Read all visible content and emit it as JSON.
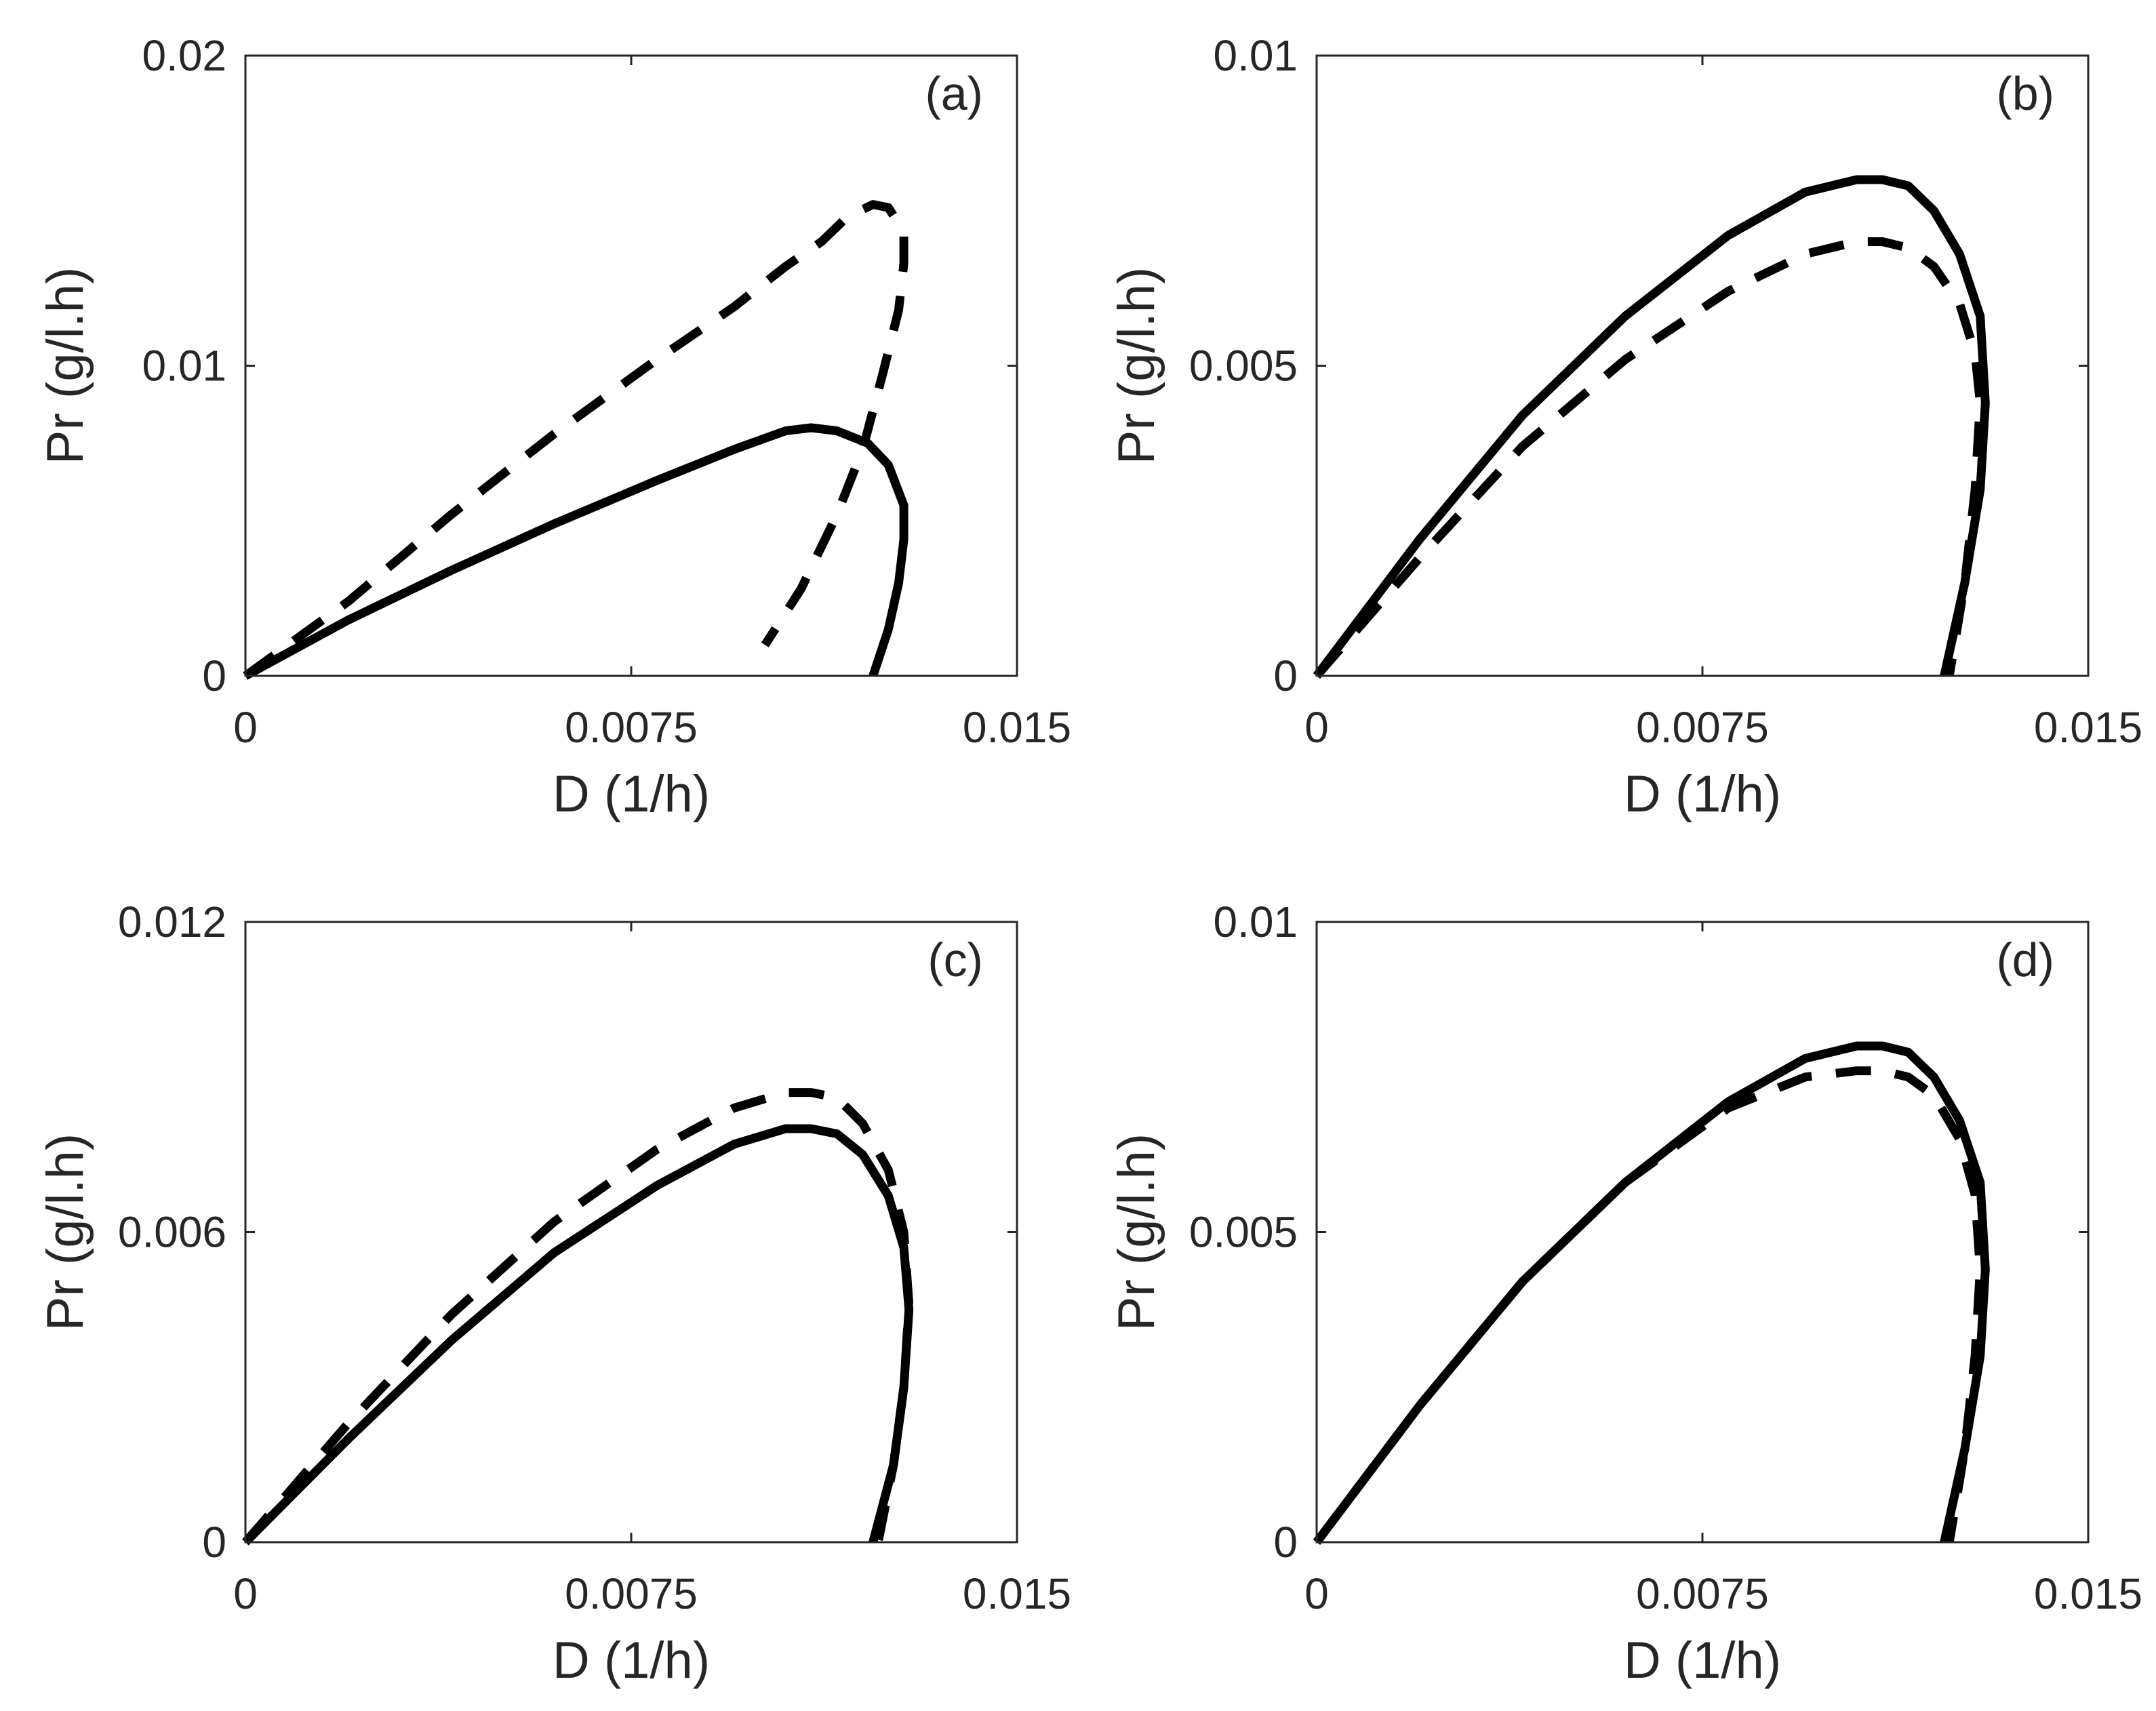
{
  "chart_data": [
    {
      "type": "line",
      "panel_label": "(a)",
      "xlabel": "D (1/h)",
      "ylabel": "Pr (g/l.h)",
      "xlim": [
        0,
        0.015
      ],
      "ylim": [
        0,
        0.02
      ],
      "xticks": [
        "0",
        "0.0075",
        "0.015"
      ],
      "yticks": [
        "0",
        "0.01",
        "0.02"
      ],
      "series": [
        {
          "name": "solid",
          "style": "solid",
          "x": [
            0,
            0.002,
            0.004,
            0.006,
            0.008,
            0.0095,
            0.0105,
            0.011,
            0.0115,
            0.0121,
            0.0125,
            0.0128,
            0.0128,
            0.0127,
            0.0125,
            0.0122
          ],
          "y": [
            0,
            0.0018,
            0.0034,
            0.0049,
            0.0063,
            0.0073,
            0.0079,
            0.008,
            0.0079,
            0.0075,
            0.0068,
            0.0055,
            0.0044,
            0.003,
            0.0015,
            0
          ]
        },
        {
          "name": "dashed",
          "style": "dashed",
          "x": [
            0,
            0.002,
            0.004,
            0.006,
            0.008,
            0.0095,
            0.0105,
            0.0112,
            0.0117,
            0.0122,
            0.0125,
            0.0128,
            0.0128,
            0.0127,
            0.0124,
            0.012,
            0.0115,
            0.0108,
            0.0101
          ],
          "y": [
            0,
            0.0024,
            0.0052,
            0.0078,
            0.0102,
            0.0119,
            0.0132,
            0.014,
            0.0148,
            0.0152,
            0.0151,
            0.0143,
            0.0133,
            0.0118,
            0.0098,
            0.0073,
            0.0052,
            0.0028,
            0.001
          ]
        }
      ]
    },
    {
      "type": "line",
      "panel_label": "(b)",
      "xlabel": "D (1/h)",
      "ylabel": "Pr (g/l.h)",
      "xlim": [
        0,
        0.015
      ],
      "ylim": [
        0,
        0.01
      ],
      "xticks": [
        "0",
        "0.0075",
        "0.015"
      ],
      "yticks": [
        "0",
        "0.005",
        "0.01"
      ],
      "series": [
        {
          "name": "solid",
          "style": "solid",
          "x": [
            0,
            0.002,
            0.004,
            0.006,
            0.008,
            0.0095,
            0.0105,
            0.011,
            0.0115,
            0.012,
            0.0125,
            0.0129,
            0.013,
            0.0129,
            0.0126,
            0.0122
          ],
          "y": [
            0,
            0.0022,
            0.0042,
            0.0058,
            0.0071,
            0.0078,
            0.008,
            0.008,
            0.0079,
            0.0075,
            0.0068,
            0.0058,
            0.0044,
            0.003,
            0.0015,
            0
          ]
        },
        {
          "name": "dashed",
          "style": "dashed",
          "x": [
            0,
            0.002,
            0.004,
            0.006,
            0.008,
            0.0095,
            0.0105,
            0.011,
            0.0115,
            0.012,
            0.0125,
            0.0128,
            0.0129,
            0.0128,
            0.0126,
            0.0123
          ],
          "y": [
            0,
            0.0019,
            0.0037,
            0.0051,
            0.0062,
            0.0068,
            0.007,
            0.007,
            0.0069,
            0.0066,
            0.006,
            0.0052,
            0.0044,
            0.003,
            0.0015,
            0
          ]
        }
      ]
    },
    {
      "type": "line",
      "panel_label": "(c)",
      "xlabel": "D (1/h)",
      "ylabel": "Pr (g/l.h)",
      "xlim": [
        0,
        0.015
      ],
      "ylim": [
        0,
        0.012
      ],
      "xticks": [
        "0",
        "0.0075",
        "0.015"
      ],
      "yticks": [
        "0",
        "0.006",
        "0.012"
      ],
      "series": [
        {
          "name": "solid",
          "style": "solid",
          "x": [
            0,
            0.002,
            0.004,
            0.006,
            0.008,
            0.0095,
            0.0105,
            0.011,
            0.0115,
            0.012,
            0.0125,
            0.0128,
            0.0129,
            0.0128,
            0.0126,
            0.0122
          ],
          "y": [
            0,
            0.002,
            0.0039,
            0.0056,
            0.0069,
            0.0077,
            0.008,
            0.008,
            0.0079,
            0.0075,
            0.0067,
            0.0057,
            0.0045,
            0.003,
            0.0015,
            0
          ]
        },
        {
          "name": "dashed",
          "style": "dashed",
          "x": [
            0,
            0.002,
            0.004,
            0.006,
            0.008,
            0.0095,
            0.0105,
            0.011,
            0.0115,
            0.012,
            0.0125,
            0.0128,
            0.0129,
            0.0128,
            0.0126,
            0.0123
          ],
          "y": [
            0,
            0.0023,
            0.0044,
            0.0062,
            0.0076,
            0.0084,
            0.0087,
            0.0087,
            0.0086,
            0.0081,
            0.0072,
            0.006,
            0.0046,
            0.003,
            0.0015,
            0
          ]
        }
      ]
    },
    {
      "type": "line",
      "panel_label": "(d)",
      "xlabel": "D (1/h)",
      "ylabel": "Pr (g/l.h)",
      "xlim": [
        0,
        0.015
      ],
      "ylim": [
        0,
        0.01
      ],
      "xticks": [
        "0",
        "0.0075",
        "0.015"
      ],
      "yticks": [
        "0",
        "0.005",
        "0.01"
      ],
      "series": [
        {
          "name": "solid",
          "style": "solid",
          "x": [
            0,
            0.002,
            0.004,
            0.006,
            0.008,
            0.0095,
            0.0105,
            0.011,
            0.0115,
            0.012,
            0.0125,
            0.0129,
            0.013,
            0.0129,
            0.0126,
            0.0122
          ],
          "y": [
            0,
            0.0022,
            0.0042,
            0.0058,
            0.0071,
            0.0078,
            0.008,
            0.008,
            0.0079,
            0.0075,
            0.0068,
            0.0058,
            0.0044,
            0.003,
            0.0015,
            0
          ]
        },
        {
          "name": "dashed",
          "style": "dashed",
          "x": [
            0,
            0.002,
            0.004,
            0.006,
            0.008,
            0.0095,
            0.0105,
            0.011,
            0.0115,
            0.012,
            0.0125,
            0.0128,
            0.0129,
            0.0128,
            0.0126,
            0.0123
          ],
          "y": [
            0,
            0.0022,
            0.0042,
            0.0058,
            0.007,
            0.0075,
            0.0076,
            0.0076,
            0.0075,
            0.0072,
            0.0065,
            0.0056,
            0.0044,
            0.003,
            0.0015,
            0
          ]
        }
      ]
    }
  ]
}
